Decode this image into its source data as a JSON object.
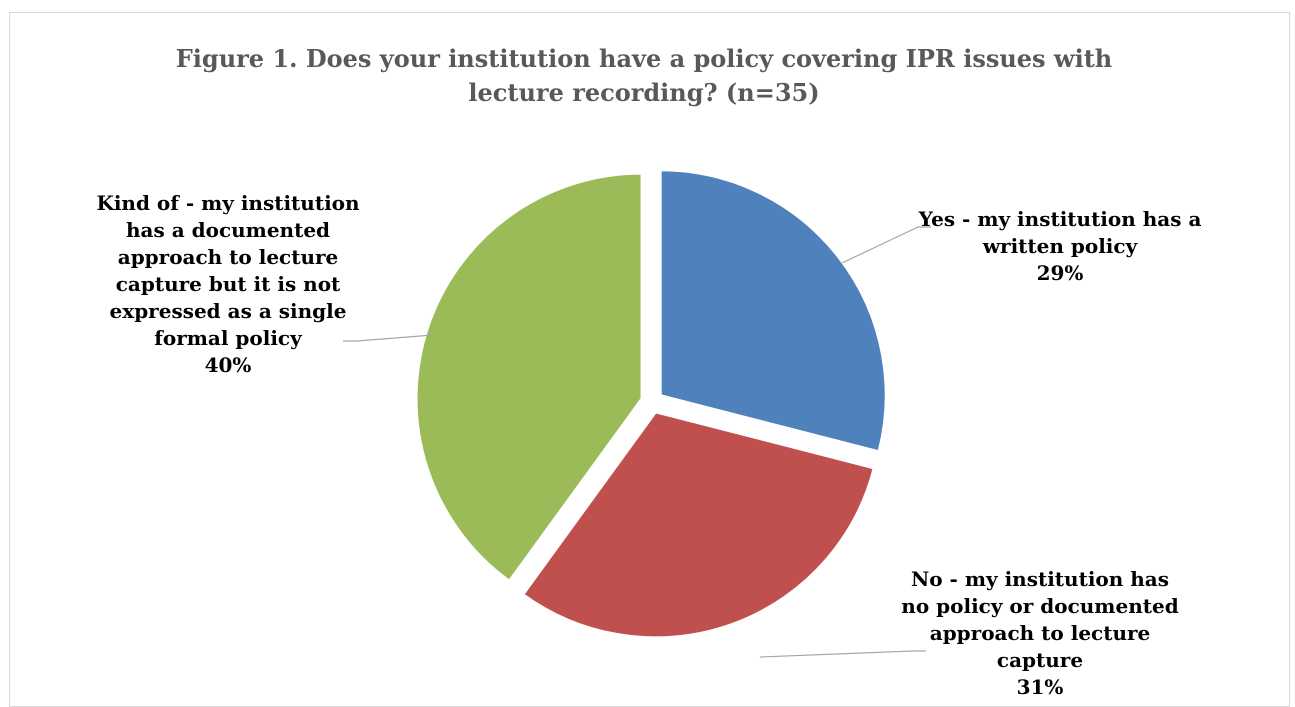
{
  "chart_data": {
    "type": "pie",
    "title": "Figure 1. Does your institution have a policy covering IPR issues with lecture recording? (n=35)",
    "slices": [
      {
        "label": "Yes -  my institution has a written policy",
        "percent_label": "29%",
        "value": 29,
        "color": "#4f81bd"
      },
      {
        "label": "No - my institution has no policy or documented approach to lecture capture",
        "percent_label": "31%",
        "value": 31,
        "color": "#c0504d"
      },
      {
        "label": "Kind of  - my institution has a documented approach to lecture capture but it is not expressed as a single formal policy",
        "percent_label": "40%",
        "value": 40,
        "color": "#9bbb59"
      }
    ],
    "legend": "none",
    "exploded": true,
    "start_angle": "12 o'clock, clockwise"
  }
}
